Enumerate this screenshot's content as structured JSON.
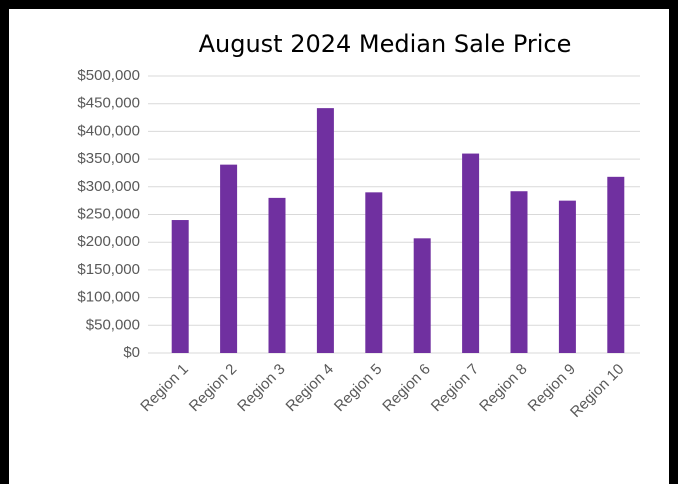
{
  "chart_data": {
    "type": "bar",
    "title": "August 2024 Median Sale Price",
    "categories": [
      "Region 1",
      "Region 2",
      "Region 3",
      "Region 4",
      "Region 5",
      "Region 6",
      "Region 7",
      "Region 8",
      "Region 9",
      "Region 10"
    ],
    "values": [
      240000,
      340000,
      280000,
      442000,
      290000,
      207000,
      360000,
      292000,
      275000,
      318000
    ],
    "color": "#7030a0",
    "ylim": [
      0,
      500000
    ],
    "yticks": [
      {
        "value": 0,
        "label": "$0"
      },
      {
        "value": 50000,
        "label": "$50,000"
      },
      {
        "value": 100000,
        "label": "$100,000"
      },
      {
        "value": 150000,
        "label": "$150,000"
      },
      {
        "value": 200000,
        "label": "$200,000"
      },
      {
        "value": 250000,
        "label": "$250,000"
      },
      {
        "value": 300000,
        "label": "$300,000"
      },
      {
        "value": 350000,
        "label": "$350,000"
      },
      {
        "value": 400000,
        "label": "$400,000"
      },
      {
        "value": 450000,
        "label": "$450,000"
      },
      {
        "value": 500000,
        "label": "$500,000"
      }
    ],
    "grid": true
  }
}
